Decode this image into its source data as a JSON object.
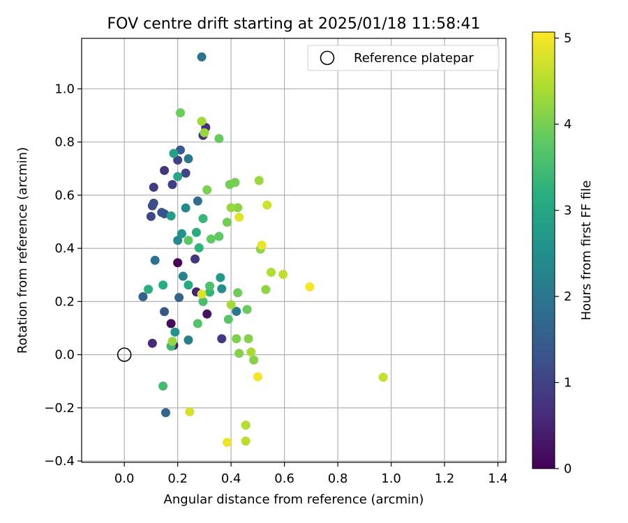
{
  "chart_data": {
    "type": "scatter",
    "title": "FOV centre drift starting at 2025/01/18 11:58:41",
    "xlabel": "Angular distance from reference (arcmin)",
    "ylabel": "Rotation from reference (arcmin)",
    "xlim": [
      -0.16,
      1.43
    ],
    "ylim": [
      -0.405,
      1.19
    ],
    "xticks": [
      0.0,
      0.2,
      0.4,
      0.6,
      0.8,
      1.0,
      1.2,
      1.4
    ],
    "xtick_labels": [
      "0.0",
      "0.2",
      "0.4",
      "0.6",
      "0.8",
      "1.0",
      "1.2",
      "1.4"
    ],
    "yticks": [
      -0.4,
      -0.2,
      0.0,
      0.2,
      0.4,
      0.6,
      0.8,
      1.0
    ],
    "ytick_labels": [
      "−0.4",
      "−0.2",
      "0.0",
      "0.2",
      "0.4",
      "0.6",
      "0.8",
      "1.0"
    ],
    "grid": true,
    "legend": {
      "placement": "top-right",
      "label": "Reference platepar"
    },
    "reference_point": {
      "x": 0.0,
      "y": 0.0
    },
    "colorbar": {
      "label": "Hours from first FF file",
      "min": 0,
      "max": 5.07,
      "ticks": [
        0,
        1,
        2,
        3,
        4,
        5
      ],
      "tick_labels": [
        "0",
        "1",
        "2",
        "3",
        "4",
        "5"
      ],
      "colormap": "viridis"
    },
    "points": [
      {
        "x": 0.2,
        "y": 0.346,
        "c": 0.05
      },
      {
        "x": 0.175,
        "y": 0.117,
        "c": 0.15
      },
      {
        "x": 0.31,
        "y": 0.153,
        "c": 0.25
      },
      {
        "x": 0.185,
        "y": 0.035,
        "c": 0.4
      },
      {
        "x": 0.27,
        "y": 0.236,
        "c": 0.5
      },
      {
        "x": 0.105,
        "y": 0.043,
        "c": 0.6
      },
      {
        "x": 0.295,
        "y": 0.825,
        "c": 0.65
      },
      {
        "x": 0.305,
        "y": 0.855,
        "c": 0.7
      },
      {
        "x": 0.15,
        "y": 0.693,
        "c": 0.75
      },
      {
        "x": 0.265,
        "y": 0.36,
        "c": 0.8
      },
      {
        "x": 0.365,
        "y": 0.06,
        "c": 0.85
      },
      {
        "x": 0.11,
        "y": 0.63,
        "c": 0.9
      },
      {
        "x": 0.18,
        "y": 0.64,
        "c": 0.95
      },
      {
        "x": 0.2,
        "y": 0.732,
        "c": 1.0
      },
      {
        "x": 0.23,
        "y": 0.683,
        "c": 1.05
      },
      {
        "x": 0.1,
        "y": 0.52,
        "c": 1.1
      },
      {
        "x": 0.105,
        "y": 0.56,
        "c": 1.15
      },
      {
        "x": 0.11,
        "y": 0.57,
        "c": 1.2
      },
      {
        "x": 0.14,
        "y": 0.535,
        "c": 1.25
      },
      {
        "x": 0.15,
        "y": 0.53,
        "c": 1.3
      },
      {
        "x": 0.15,
        "y": 0.162,
        "c": 1.35
      },
      {
        "x": 0.21,
        "y": 0.77,
        "c": 1.45
      },
      {
        "x": 0.07,
        "y": 0.218,
        "c": 1.55
      },
      {
        "x": 0.205,
        "y": 0.215,
        "c": 1.6
      },
      {
        "x": 0.155,
        "y": -0.218,
        "c": 1.7
      },
      {
        "x": 0.275,
        "y": 0.578,
        "c": 1.8
      },
      {
        "x": 0.115,
        "y": 0.355,
        "c": 1.9
      },
      {
        "x": 0.29,
        "y": 1.12,
        "c": 1.95
      },
      {
        "x": 0.24,
        "y": 0.737,
        "c": 2.0
      },
      {
        "x": 0.42,
        "y": 0.163,
        "c": 2.05
      },
      {
        "x": 0.24,
        "y": 0.055,
        "c": 2.15
      },
      {
        "x": 0.22,
        "y": 0.295,
        "c": 2.25
      },
      {
        "x": 0.2,
        "y": 0.43,
        "c": 2.35
      },
      {
        "x": 0.23,
        "y": 0.552,
        "c": 2.4
      },
      {
        "x": 0.365,
        "y": 0.248,
        "c": 2.5
      },
      {
        "x": 0.215,
        "y": 0.455,
        "c": 2.55
      },
      {
        "x": 0.19,
        "y": 0.085,
        "c": 2.6
      },
      {
        "x": 0.36,
        "y": 0.29,
        "c": 2.7
      },
      {
        "x": 0.175,
        "y": 0.522,
        "c": 2.8
      },
      {
        "x": 0.185,
        "y": 0.757,
        "c": 2.9
      },
      {
        "x": 0.2,
        "y": 0.67,
        "c": 3.0
      },
      {
        "x": 0.24,
        "y": 0.262,
        "c": 3.05
      },
      {
        "x": 0.27,
        "y": 0.46,
        "c": 3.1
      },
      {
        "x": 0.145,
        "y": 0.262,
        "c": 3.15
      },
      {
        "x": 0.09,
        "y": 0.246,
        "c": 3.2
      },
      {
        "x": 0.28,
        "y": 0.402,
        "c": 3.25
      },
      {
        "x": 0.32,
        "y": 0.235,
        "c": 3.3
      },
      {
        "x": 0.295,
        "y": 0.512,
        "c": 3.35
      },
      {
        "x": 0.175,
        "y": 0.032,
        "c": 3.4
      },
      {
        "x": 0.145,
        "y": -0.118,
        "c": 3.5
      },
      {
        "x": 0.295,
        "y": 0.2,
        "c": 3.55
      },
      {
        "x": 0.32,
        "y": 0.258,
        "c": 3.6
      },
      {
        "x": 0.275,
        "y": 0.117,
        "c": 3.65
      },
      {
        "x": 0.39,
        "y": 0.133,
        "c": 3.7
      },
      {
        "x": 0.24,
        "y": 0.43,
        "c": 3.75
      },
      {
        "x": 0.355,
        "y": 0.445,
        "c": 3.8
      },
      {
        "x": 0.325,
        "y": 0.435,
        "c": 3.82
      },
      {
        "x": 0.355,
        "y": 0.813,
        "c": 3.85
      },
      {
        "x": 0.46,
        "y": 0.17,
        "c": 3.88
      },
      {
        "x": 0.21,
        "y": 0.91,
        "c": 3.9
      },
      {
        "x": 0.425,
        "y": 0.233,
        "c": 3.92
      },
      {
        "x": 0.385,
        "y": 0.498,
        "c": 3.95
      },
      {
        "x": 0.395,
        "y": 0.64,
        "c": 3.97
      },
      {
        "x": 0.415,
        "y": 0.648,
        "c": 4.0
      },
      {
        "x": 0.31,
        "y": 0.62,
        "c": 4.02
      },
      {
        "x": 0.42,
        "y": 0.06,
        "c": 4.05
      },
      {
        "x": 0.43,
        "y": 0.005,
        "c": 4.08
      },
      {
        "x": 0.465,
        "y": 0.06,
        "c": 4.1
      },
      {
        "x": 0.485,
        "y": -0.02,
        "c": 4.12
      },
      {
        "x": 0.425,
        "y": 0.553,
        "c": 4.15
      },
      {
        "x": 0.51,
        "y": 0.397,
        "c": 4.18
      },
      {
        "x": 0.53,
        "y": 0.245,
        "c": 4.2
      },
      {
        "x": 0.18,
        "y": 0.05,
        "c": 4.22
      },
      {
        "x": 0.4,
        "y": 0.553,
        "c": 4.25
      },
      {
        "x": 0.3,
        "y": 0.835,
        "c": 4.28
      },
      {
        "x": 0.505,
        "y": 0.655,
        "c": 4.3
      },
      {
        "x": 0.29,
        "y": 0.878,
        "c": 4.33
      },
      {
        "x": 0.4,
        "y": 0.188,
        "c": 4.36
      },
      {
        "x": 0.475,
        "y": 0.01,
        "c": 4.4
      },
      {
        "x": 0.55,
        "y": 0.31,
        "c": 4.45
      },
      {
        "x": 0.455,
        "y": -0.265,
        "c": 4.5
      },
      {
        "x": 0.455,
        "y": -0.325,
        "c": 4.55
      },
      {
        "x": 0.595,
        "y": 0.302,
        "c": 4.6
      },
      {
        "x": 0.97,
        "y": -0.085,
        "c": 4.65
      },
      {
        "x": 0.535,
        "y": 0.563,
        "c": 4.7
      },
      {
        "x": 0.245,
        "y": -0.215,
        "c": 4.75
      },
      {
        "x": 0.29,
        "y": 0.228,
        "c": 4.8
      },
      {
        "x": 0.43,
        "y": 0.517,
        "c": 4.85
      },
      {
        "x": 0.515,
        "y": 0.412,
        "c": 4.9
      },
      {
        "x": 0.385,
        "y": -0.33,
        "c": 4.95
      },
      {
        "x": 0.5,
        "y": -0.083,
        "c": 5.0
      },
      {
        "x": 0.695,
        "y": 0.255,
        "c": 5.03
      }
    ]
  }
}
